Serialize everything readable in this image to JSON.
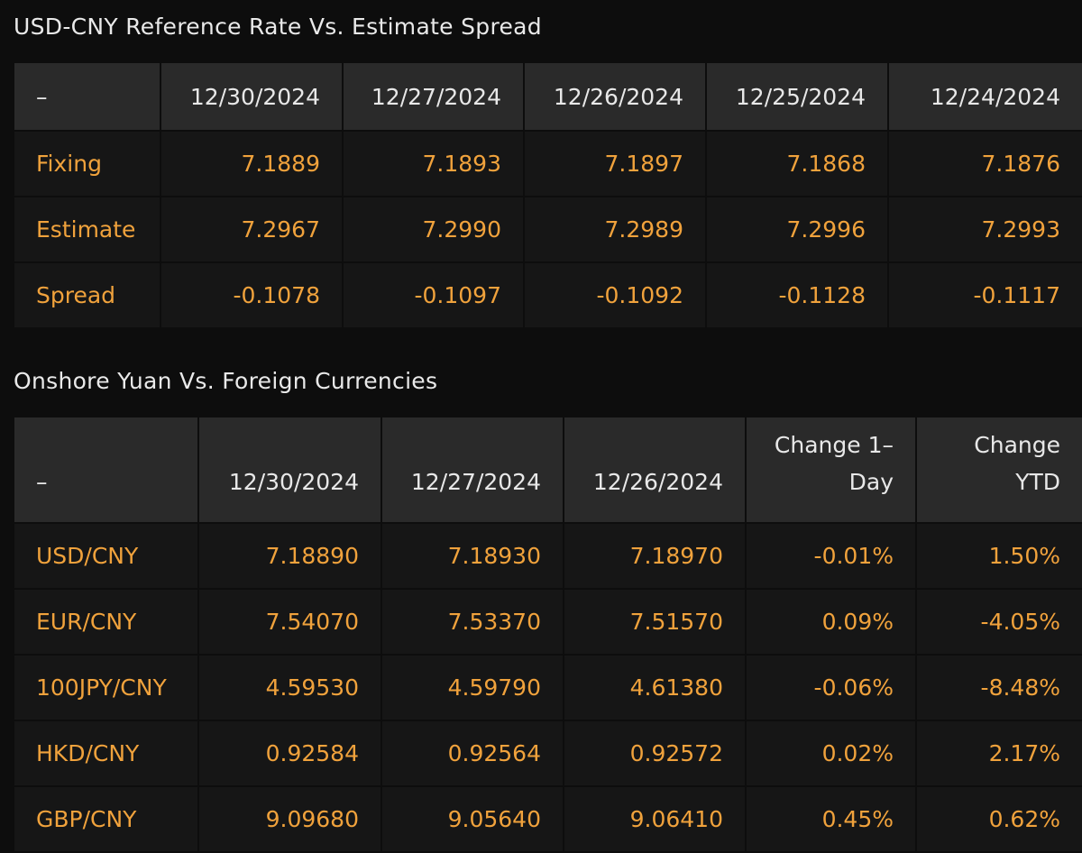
{
  "reference_rate": {
    "title": "USD-CNY Reference Rate Vs. Estimate Spread",
    "corner": "–",
    "columns": [
      "12/30/2024",
      "12/27/2024",
      "12/26/2024",
      "12/25/2024",
      "12/24/2024"
    ],
    "rows": [
      {
        "label": "Fixing",
        "values": [
          "7.1889",
          "7.1893",
          "7.1897",
          "7.1868",
          "7.1876"
        ]
      },
      {
        "label": "Estimate",
        "values": [
          "7.2967",
          "7.2990",
          "7.2989",
          "7.2996",
          "7.2993"
        ]
      },
      {
        "label": "Spread",
        "values": [
          "-0.1078",
          "-0.1097",
          "-0.1092",
          "-0.1128",
          "-0.1117"
        ]
      }
    ]
  },
  "onshore_yuan": {
    "title": "Onshore Yuan Vs. Foreign Currencies",
    "corner": "–",
    "columns": [
      "12/30/2024",
      "12/27/2024",
      "12/26/2024",
      "Change 1–Day",
      "Change YTD"
    ],
    "rows": [
      {
        "label": "USD/CNY",
        "values": [
          "7.18890",
          "7.18930",
          "7.18970",
          "-0.01%",
          "1.50%"
        ]
      },
      {
        "label": "EUR/CNY",
        "values": [
          "7.54070",
          "7.53370",
          "7.51570",
          "0.09%",
          "-4.05%"
        ]
      },
      {
        "label": "100JPY/CNY",
        "values": [
          "4.59530",
          "4.59790",
          "4.61380",
          "-0.06%",
          "-8.48%"
        ]
      },
      {
        "label": "HKD/CNY",
        "values": [
          "0.92584",
          "0.92564",
          "0.92572",
          "0.02%",
          "2.17%"
        ]
      },
      {
        "label": "GBP/CNY",
        "values": [
          "9.09680",
          "9.05640",
          "9.06410",
          "0.45%",
          "0.62%"
        ]
      }
    ]
  },
  "colors": {
    "background": "#0d0d0d",
    "header_cell": "#2a2a2a",
    "body_cell": "#161616",
    "value_text": "#f0a23c",
    "header_text": "#e8e8e8"
  }
}
